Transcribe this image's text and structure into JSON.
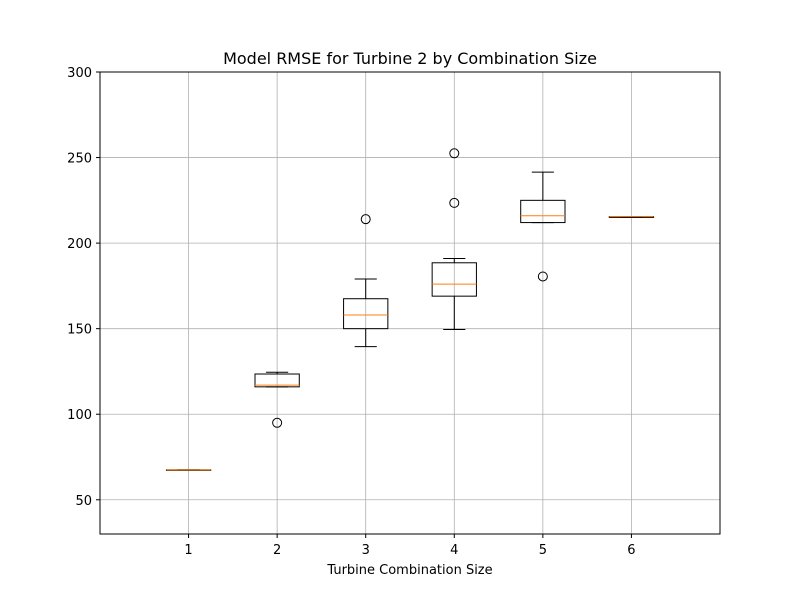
{
  "chart_data": {
    "type": "box",
    "title": "Model RMSE for Turbine 2 by Combination Size",
    "xlabel": "Turbine Combination Size",
    "ylabel": "",
    "ylim": [
      30,
      300
    ],
    "xlim": [
      0,
      7
    ],
    "yticks": [
      50,
      100,
      150,
      200,
      250,
      300
    ],
    "grid": true,
    "colors": {
      "box": "#000000",
      "median": "#ff7f0e",
      "grid": "#b0b0b0"
    },
    "categories": [
      "1",
      "2",
      "3",
      "4",
      "5",
      "6"
    ],
    "boxes": [
      {
        "label": "1",
        "whisker_low": 67.5,
        "q1": 67.5,
        "median": 67.5,
        "q3": 67.5,
        "whisker_high": 67.5,
        "outliers": []
      },
      {
        "label": "2",
        "whisker_low": 116,
        "q1": 116,
        "median": 117,
        "q3": 123.5,
        "whisker_high": 124.5,
        "outliers": [
          95
        ]
      },
      {
        "label": "3",
        "whisker_low": 139.5,
        "q1": 150,
        "median": 158,
        "q3": 167.5,
        "whisker_high": 179,
        "outliers": [
          214
        ]
      },
      {
        "label": "4",
        "whisker_low": 149.5,
        "q1": 169,
        "median": 176,
        "q3": 188.5,
        "whisker_high": 191,
        "outliers": [
          223.5,
          252.5
        ]
      },
      {
        "label": "5",
        "whisker_low": 212,
        "q1": 212,
        "median": 216,
        "q3": 225,
        "whisker_high": 241.5,
        "outliers": [
          180.5
        ]
      },
      {
        "label": "6",
        "whisker_low": 215,
        "q1": 215,
        "median": 215.5,
        "q3": 215.5,
        "whisker_high": 215.5,
        "outliers": []
      }
    ]
  }
}
